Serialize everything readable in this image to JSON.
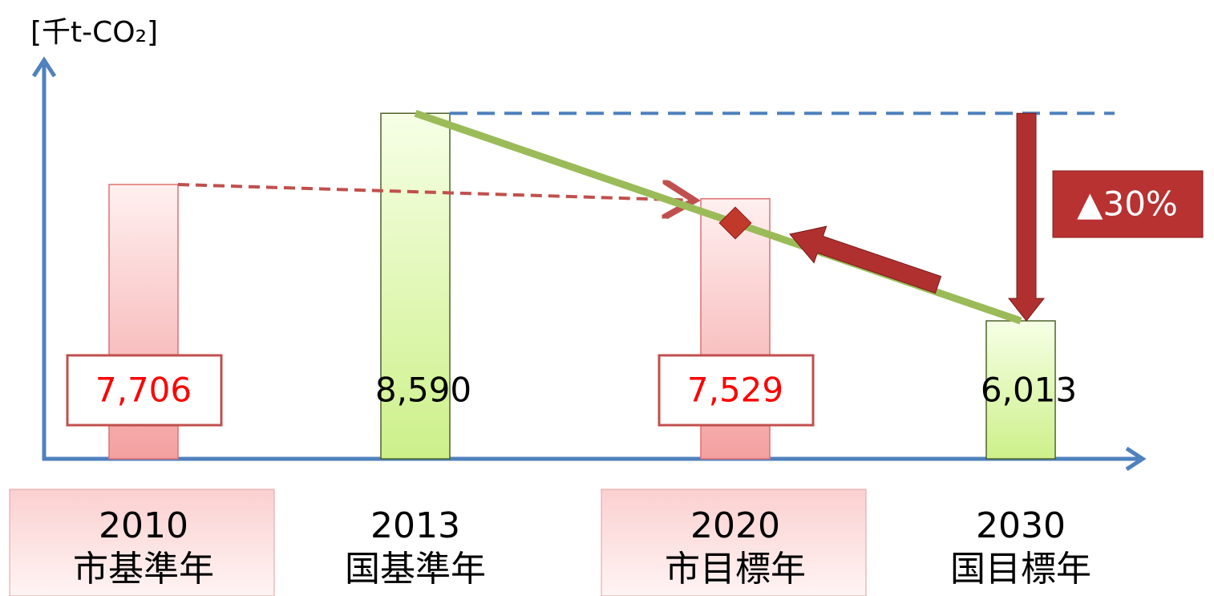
{
  "chart_data": {
    "type": "bar",
    "y_label": "[千t-CO₂]",
    "categories": [
      "2010",
      "2013",
      "2020",
      "2030"
    ],
    "sublabels": [
      "市基準年",
      "国基準年",
      "市目標年",
      "国目標年"
    ],
    "values": [
      7706,
      8590,
      7529,
      6013
    ],
    "value_labels": [
      "7,706",
      "8,590",
      "7,529",
      "6,013"
    ],
    "colors": [
      "#f8b8b8",
      "#d6f29a",
      "#f8b8b8",
      "#d6f29a"
    ],
    "ylim": [
      4300,
      9200
    ],
    "annotation": "▲30%"
  }
}
